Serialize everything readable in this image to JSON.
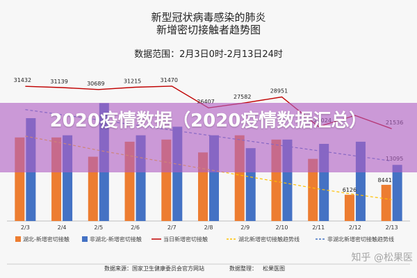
{
  "page": {
    "title_line1": "新型冠状病毒感染的肺炎",
    "title_line2": "新增密切接触者趋势图",
    "range_text": "数据范围：2月3日0时-2月13日24时",
    "footer_source": "数据来源：国家卫生健康委员会官方网站",
    "footer_organizer": "数据整理：",
    "footer_logo": "松果医图",
    "banner_text": "2020疫情数据（2020疫情数据汇总）",
    "watermark": "知乎 @松果医"
  },
  "colors": {
    "hubei": "#ed7d31",
    "non_hubei": "#4472c4",
    "total_line": "#c00000",
    "hubei_trend": "#ffc000",
    "non_hubei_trend": "#4472c4",
    "banner": "#b060c4",
    "background": "#f7f7f7"
  },
  "chart_data": {
    "type": "bar",
    "categories": [
      "2/3",
      "2/4",
      "2/5",
      "2/6",
      "2/7",
      "2/8",
      "2/9",
      "2/10",
      "2/11",
      "2/12",
      "2/13"
    ],
    "ylim": [
      0,
      36000
    ],
    "series": [
      {
        "name": "湖北-新增密切接触",
        "kind": "bar",
        "values": [
          19500,
          19500,
          15000,
          18500,
          19000,
          16000,
          20000,
          19000,
          14500,
          6126,
          8441
        ]
      },
      {
        "name": "非湖北-新增密切接触",
        "kind": "bar",
        "values": [
          24000,
          20000,
          27500,
          20000,
          22000,
          20000,
          17000,
          19000,
          18000,
          18500,
          13095
        ]
      },
      {
        "name": "当日新增密切接触",
        "kind": "line",
        "values": [
          31432,
          31139,
          30689,
          31215,
          31470,
          26407,
          27582,
          28951,
          22024,
          24632,
          21536
        ]
      },
      {
        "name": "湖北新增密切接触趋势线",
        "kind": "trend",
        "values": [
          19800,
          18200,
          16500,
          15000,
          13500,
          12000,
          10500,
          9000,
          7500,
          6200,
          5000
        ]
      },
      {
        "name": "非湖北新增密切接触趋势线",
        "kind": "trend",
        "values": [
          26000,
          24800,
          23600,
          22400,
          21200,
          20000,
          18800,
          17600,
          16400,
          15200,
          14000
        ]
      }
    ],
    "data_labels": [
      "31432",
      "31139",
      "30689",
      "31215",
      "31470",
      "26407",
      "27582",
      "28951",
      "22024",
      "6126",
      "21536",
      "13095",
      "8441"
    ],
    "legend_position": "bottom"
  }
}
